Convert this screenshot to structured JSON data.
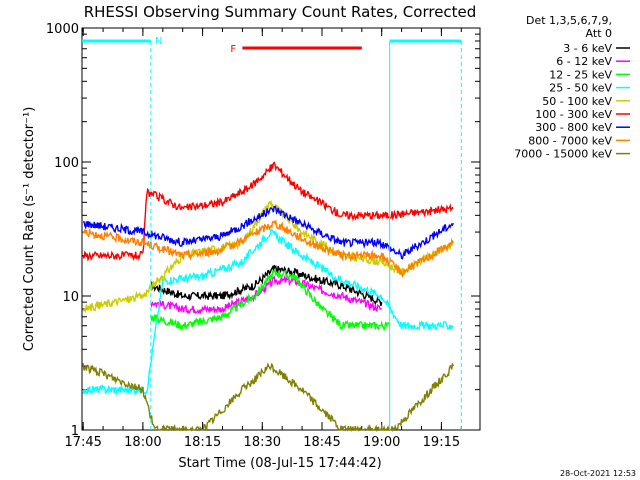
{
  "chart_data": {
    "type": "line",
    "title": "RHESSI Observing Summary Count Rates, Corrected",
    "xlabel": "Start Time (08-Jul-15 17:44:42)",
    "ylabel": "Corrected Count Rate (s⁻¹ detector⁻¹)",
    "x_scale": "time",
    "y_scale": "log",
    "x_ticks": [
      "17:45",
      "18:00",
      "18:15",
      "18:30",
      "18:45",
      "19:00",
      "19:15"
    ],
    "y_ticks": [
      "1",
      "10",
      "100",
      "1000"
    ],
    "xlim": [
      "17:44:42",
      "19:24:42"
    ],
    "ylim": [
      1,
      1000
    ],
    "legend_header": [
      "Det 1,3,5,6,7,9,",
      "Att 0"
    ],
    "legend_position": "right",
    "annotations": {
      "night": {
        "label": "N",
        "color": "#00ffff",
        "intervals": [
          [
            "17:44:42",
            "18:02:00"
          ],
          [
            "19:02:00",
            "19:20:00"
          ]
        ]
      },
      "flare": {
        "label": "F",
        "color": "#ff0000",
        "interval": [
          "18:25:00",
          "18:55:00"
        ]
      }
    },
    "series": [
      {
        "name": "3 - 6 keV",
        "color": "#000000",
        "x": [
          "18:02",
          "18:10",
          "18:20",
          "18:28",
          "18:33",
          "18:38",
          "18:45",
          "18:50",
          "19:00"
        ],
        "values": [
          12,
          10,
          10,
          12,
          16,
          15,
          13,
          12,
          9
        ]
      },
      {
        "name": "6 - 12 keV",
        "color": "#ff00ff",
        "x": [
          "18:02",
          "18:10",
          "18:20",
          "18:28",
          "18:33",
          "18:38",
          "18:45",
          "18:50",
          "19:00"
        ],
        "values": [
          9,
          8,
          8,
          10,
          13,
          13,
          11,
          10,
          8
        ]
      },
      {
        "name": "12 - 25 keV",
        "color": "#00ff00",
        "x": [
          "18:02",
          "18:10",
          "18:20",
          "18:28",
          "18:33",
          "18:38",
          "18:45",
          "18:50",
          "19:02"
        ],
        "values": [
          7,
          6,
          7,
          10,
          15,
          14,
          8,
          6,
          6
        ]
      },
      {
        "name": "25 - 50 keV",
        "color": "#00ffff",
        "x": [
          "17:45",
          "18:01",
          "18:05",
          "18:15",
          "18:25",
          "18:32",
          "18:40",
          "18:48",
          "19:00",
          "19:05",
          "19:18"
        ],
        "values": [
          2,
          2,
          13,
          14,
          18,
          30,
          20,
          14,
          10,
          6,
          6
        ]
      },
      {
        "name": "50 - 100 keV",
        "color": "#cccc00",
        "x": [
          "17:45",
          "18:00",
          "18:10",
          "18:25",
          "18:32",
          "18:40",
          "18:50",
          "19:00",
          "19:05",
          "19:18"
        ],
        "values": [
          8,
          10,
          20,
          25,
          50,
          30,
          20,
          18,
          15,
          25
        ]
      },
      {
        "name": "100 - 300 keV",
        "color": "#ff0000",
        "x": [
          "17:45",
          "18:00",
          "18:01",
          "18:10",
          "18:20",
          "18:27",
          "18:33",
          "18:40",
          "18:50",
          "19:00",
          "19:02",
          "19:18"
        ],
        "values": [
          20,
          20,
          60,
          45,
          50,
          65,
          95,
          60,
          40,
          40,
          40,
          45
        ]
      },
      {
        "name": "300 - 800 keV",
        "color": "#0000ff",
        "x": [
          "17:45",
          "18:00",
          "18:10",
          "18:20",
          "18:33",
          "18:42",
          "18:50",
          "19:00",
          "19:05",
          "19:18"
        ],
        "values": [
          35,
          30,
          25,
          28,
          45,
          32,
          25,
          25,
          20,
          35
        ]
      },
      {
        "name": "800 - 7000 keV",
        "color": "#ff8000",
        "x": [
          "17:45",
          "18:00",
          "18:10",
          "18:20",
          "18:33",
          "18:42",
          "18:50",
          "19:00",
          "19:05",
          "19:18"
        ],
        "values": [
          30,
          25,
          20,
          22,
          35,
          25,
          20,
          20,
          15,
          25
        ]
      },
      {
        "name": "7000 - 15000 keV",
        "color": "#808000",
        "x": [
          "17:45",
          "18:00",
          "18:03",
          "18:15",
          "18:25",
          "18:32",
          "18:40",
          "18:50",
          "19:00",
          "19:03",
          "19:18"
        ],
        "values": [
          3,
          2,
          1,
          1,
          2,
          3,
          2,
          1,
          1,
          1,
          3
        ]
      }
    ]
  },
  "footer": {
    "timestamp": "28-Oct-2021 12:53"
  }
}
